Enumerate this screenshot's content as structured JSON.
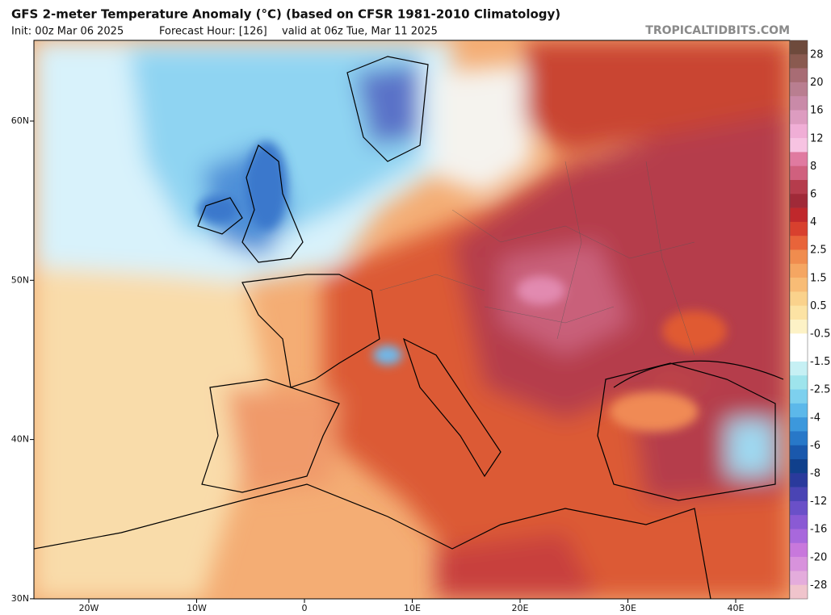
{
  "header": {
    "title": "GFS 2-meter Temperature Anomaly (°C) (based on CFSR 1981-2010 Climatology)",
    "init": "Init: 00z Mar 06 2025",
    "forecast_hour": "Forecast Hour: [126]",
    "valid": "valid at 06z Tue, Mar 11 2025",
    "watermark": "TROPICALTIDBITS.COM"
  },
  "map": {
    "lat_labels": [
      "60N",
      "50N",
      "40N",
      "30N"
    ],
    "lon_labels": [
      "20W",
      "10W",
      "0",
      "10E",
      "20E",
      "30E",
      "40E"
    ]
  },
  "colorbar": {
    "labels": [
      "28",
      "20",
      "16",
      "12",
      "8",
      "6",
      "4",
      "2.5",
      "1.5",
      "0.5",
      "-0.5",
      "-1.5",
      "-2.5",
      "-4",
      "-6",
      "-8",
      "-12",
      "-16",
      "-20",
      "-28"
    ]
  }
}
